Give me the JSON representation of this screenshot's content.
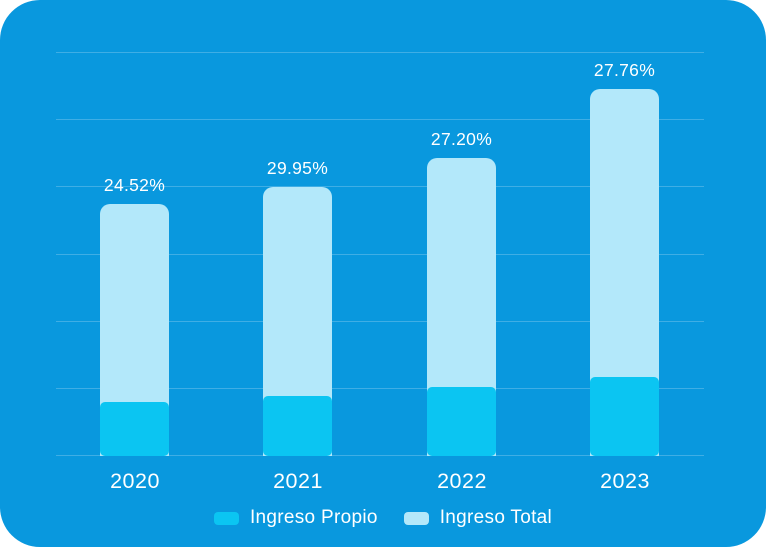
{
  "chart_data": {
    "type": "bar",
    "stacked": true,
    "categories": [
      "2020",
      "2021",
      "2022",
      "2023"
    ],
    "series": [
      {
        "name": "Ingreso Propio",
        "color": "#0BC5F2",
        "values": [
          14.7,
          16.3,
          18.8,
          21.5
        ]
      },
      {
        "name": "Ingreso Total",
        "color": "#B3E8FA",
        "values": [
          68.7,
          73.3,
          81.2,
          100
        ]
      }
    ],
    "annotations": [
      "24.52%",
      "29.95%",
      "27.20%",
      "27.76%"
    ],
    "title": "",
    "xlabel": "",
    "ylabel": "",
    "value_scale": "relative height, normalized so 2023 Ingreso Total = 100; Ingreso Total values are full bar heights with Ingreso Propio overlaid at the base",
    "grid": "horizontal",
    "gridline_count": 7,
    "axes_visible": false,
    "legend_position": "bottom"
  },
  "legend": {
    "items": [
      {
        "label": "Ingreso Propio",
        "color": "#0BC5F2"
      },
      {
        "label": "Ingreso Total",
        "color": "#B3E8FA"
      }
    ]
  },
  "colors": {
    "card_background": "#0998DE",
    "gridline": "rgba(255,255,255,0.22)",
    "text": "#FFFFFF",
    "page_background": "#FFFFFF"
  }
}
